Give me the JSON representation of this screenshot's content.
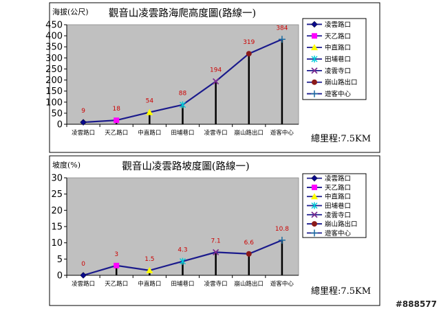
{
  "chart_data": [
    {
      "type": "line",
      "title": "觀音山凌雲路海爬高度圖(路線一)",
      "ylabel": "海拔(公尺)",
      "xlabel": "",
      "categories": [
        "凌雲路口",
        "天乙路口",
        "中直路口",
        "田埔巷口",
        "凌雲寺口",
        "崩山路出口",
        "遊客中心"
      ],
      "values": [
        9,
        18,
        54,
        88,
        194,
        319,
        384
      ],
      "data_labels": [
        "9",
        "18",
        "54",
        "88",
        "194",
        "319",
        "384"
      ],
      "ylim": [
        0,
        450
      ],
      "yticks": [
        0,
        50,
        100,
        150,
        200,
        250,
        300,
        350,
        400,
        450
      ],
      "grid": false,
      "legend_position": "right",
      "legend": [
        "凌雲路口",
        "天乙路口",
        "中直路口",
        "田埔巷口",
        "凌雲寺口",
        "崩山路出口",
        "遊客中心"
      ],
      "annotation": "總里程:7.5KM"
    },
    {
      "type": "line",
      "title": "觀音山凌雲路坡度圖(路線一)",
      "ylabel": "坡度(%)",
      "xlabel": "",
      "categories": [
        "凌雲路口",
        "天乙路口",
        "中直路口",
        "田埔巷口",
        "凌雲寺口",
        "崩山路出口",
        "遊客中心"
      ],
      "values": [
        0,
        3,
        1.5,
        4.3,
        7.1,
        6.6,
        10.8
      ],
      "data_labels": [
        "0",
        "3",
        "1.5",
        "4.3",
        "7.1",
        "6.6",
        "10.8"
      ],
      "ylim": [
        0,
        30
      ],
      "yticks": [
        0,
        5,
        10,
        15,
        20,
        25,
        30
      ],
      "grid": false,
      "legend_position": "right",
      "legend": [
        "凌雲路口",
        "天乙路口",
        "中直路口",
        "田埔巷口",
        "凌雲寺口",
        "崩山路出口",
        "遊客中心"
      ],
      "annotation": "總里程:7.5KM"
    }
  ],
  "style": {
    "plot_bg": "#c0c0c0",
    "line_color": "#1a1a8c",
    "drop_line_color": "#000000",
    "label_color": "#cc0000",
    "marker_colors": [
      "#0a0a8a",
      "#ff00ff",
      "#ffff00",
      "#00c8d8",
      "#7b2c90",
      "#8b1a1a",
      "#1a6aa0"
    ],
    "marker_shapes": [
      "diamond",
      "square",
      "triangle",
      "xstar",
      "x",
      "circle",
      "plus"
    ]
  },
  "watermark": "#888577"
}
